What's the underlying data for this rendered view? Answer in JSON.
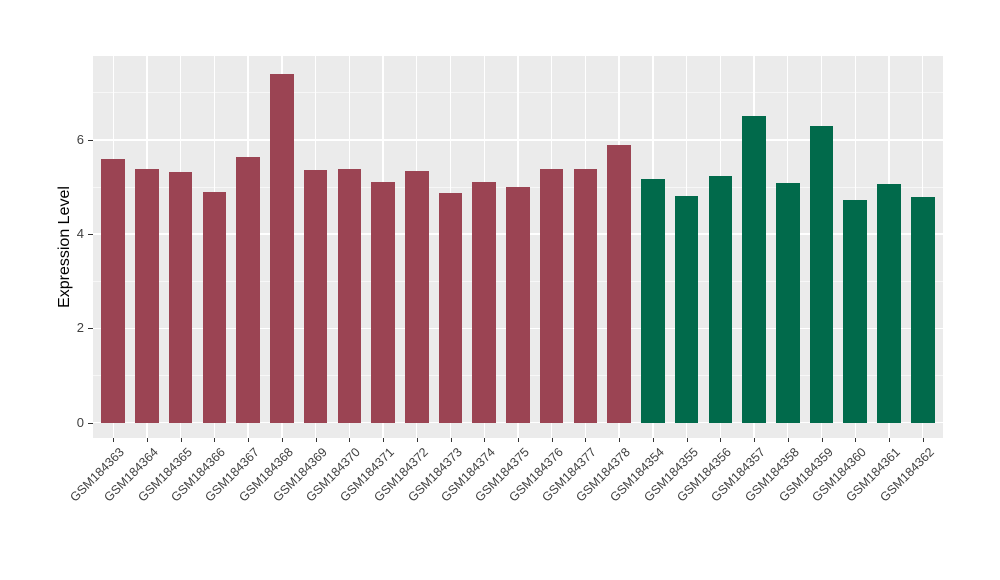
{
  "chart_data": {
    "type": "bar",
    "title": "",
    "xlabel": "",
    "ylabel": "Expression Level",
    "categories": [
      "GSM184363",
      "GSM184364",
      "GSM184365",
      "GSM184366",
      "GSM184367",
      "GSM184368",
      "GSM184369",
      "GSM184370",
      "GSM184371",
      "GSM184372",
      "GSM184373",
      "GSM184374",
      "GSM184375",
      "GSM184376",
      "GSM184377",
      "GSM184378",
      "GSM184354",
      "GSM184355",
      "GSM184356",
      "GSM184357",
      "GSM184358",
      "GSM184359",
      "GSM184360",
      "GSM184361",
      "GSM184362"
    ],
    "values": [
      5.6,
      5.38,
      5.32,
      4.9,
      5.64,
      7.4,
      5.36,
      5.38,
      5.11,
      5.34,
      4.87,
      5.11,
      5.0,
      5.38,
      5.38,
      5.89,
      5.17,
      4.81,
      5.24,
      6.52,
      5.08,
      6.3,
      4.73,
      5.07,
      4.78
    ],
    "bar_groups": [
      "A",
      "A",
      "A",
      "A",
      "A",
      "A",
      "A",
      "A",
      "A",
      "A",
      "A",
      "A",
      "A",
      "A",
      "A",
      "A",
      "B",
      "B",
      "B",
      "B",
      "B",
      "B",
      "B",
      "B",
      "B"
    ],
    "group_colors": {
      "A": "#9B4453",
      "B": "#016A4B"
    },
    "series": [
      {
        "name": "GSM184363-GSM184378",
        "color": "#9B4453",
        "count": 16
      },
      {
        "name": "GSM184354-GSM184362",
        "color": "#016A4B",
        "count": 9
      }
    ],
    "y_axis": {
      "label": "Expression Level",
      "ticks": [
        0,
        2,
        4,
        6
      ],
      "minor_ticks": [
        1,
        3,
        5,
        7
      ],
      "range": [
        -0.33,
        7.79
      ]
    },
    "layout_hints": {
      "legend": "none",
      "grid": "on",
      "panel_bg": "#EBEBEB",
      "grid_color": "#FFFFFF",
      "x_label_angle": 45
    }
  }
}
